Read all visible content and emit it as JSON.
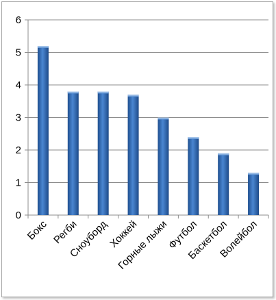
{
  "chart_data": {
    "type": "bar",
    "categories": [
      "Бокс",
      "Регби",
      "Сноуборд",
      "Хоккей",
      "Горные лыжи",
      "Футбол",
      "Баскетбол",
      "Волейбол"
    ],
    "series": [
      {
        "values": [
          5.2,
          3.8,
          3.8,
          3.7,
          3.0,
          2.4,
          1.9,
          1.3
        ]
      }
    ],
    "y_ticks": [
      "0",
      "1",
      "2",
      "3",
      "4",
      "5",
      "6"
    ],
    "title": "",
    "xlabel": "",
    "ylabel": "",
    "ylim": [
      0,
      6
    ],
    "grid": true,
    "legend": "none",
    "bar_color": "#3a6fb8"
  }
}
